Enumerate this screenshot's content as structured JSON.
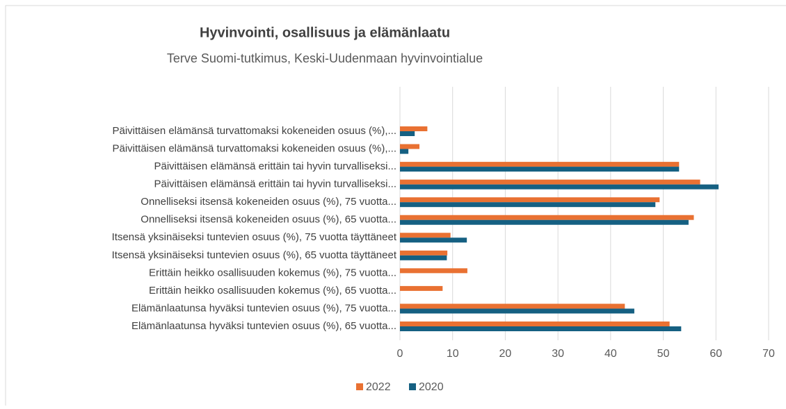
{
  "chart_data": {
    "type": "bar",
    "orientation": "horizontal",
    "title": "Hyvinvointi, osallisuus ja elämänlaatu",
    "subtitle": "Terve Suomi-tutkimus, Keski-Uudenmaan hyvinvointialue",
    "categories": [
      "Päivittäisen elämänsä turvattomaksi kokeneiden osuus (%),...",
      "Päivittäisen elämänsä turvattomaksi kokeneiden osuus (%),...",
      "Päivittäisen elämänsä erittäin tai hyvin turvalliseksi...",
      "Päivittäisen elämänsä erittäin tai hyvin turvalliseksi...",
      "Onnelliseksi itsensä kokeneiden osuus (%), 75 vuotta...",
      "Onnelliseksi itsensä kokeneiden osuus (%), 65 vuotta...",
      "Itsensä yksinäiseksi tuntevien osuus (%), 75 vuotta täyttäneet",
      "Itsensä yksinäiseksi tuntevien osuus (%), 65 vuotta täyttäneet",
      "Erittäin heikko osallisuuden kokemus (%), 75 vuotta...",
      "Erittäin heikko osallisuuden kokemus (%), 65 vuotta...",
      "Elämänlaatunsa hyväksi tuntevien osuus (%), 75 vuotta...",
      "Elämänlaatunsa hyväksi tuntevien osuus (%), 65 vuotta..."
    ],
    "series": [
      {
        "name": "2022",
        "color": "#e97132",
        "values": [
          5.2,
          3.7,
          53.0,
          57.0,
          49.3,
          55.8,
          9.6,
          9.0,
          12.8,
          8.1,
          42.7,
          51.2
        ]
      },
      {
        "name": "2020",
        "color": "#156082",
        "values": [
          2.8,
          1.6,
          53.0,
          60.5,
          48.5,
          54.8,
          12.7,
          8.9,
          null,
          null,
          44.5,
          53.4
        ]
      }
    ],
    "xlim": [
      0,
      70
    ],
    "xticks": [
      0,
      10,
      20,
      30,
      40,
      50,
      60,
      70
    ],
    "grid": true,
    "legend": "bottom"
  }
}
